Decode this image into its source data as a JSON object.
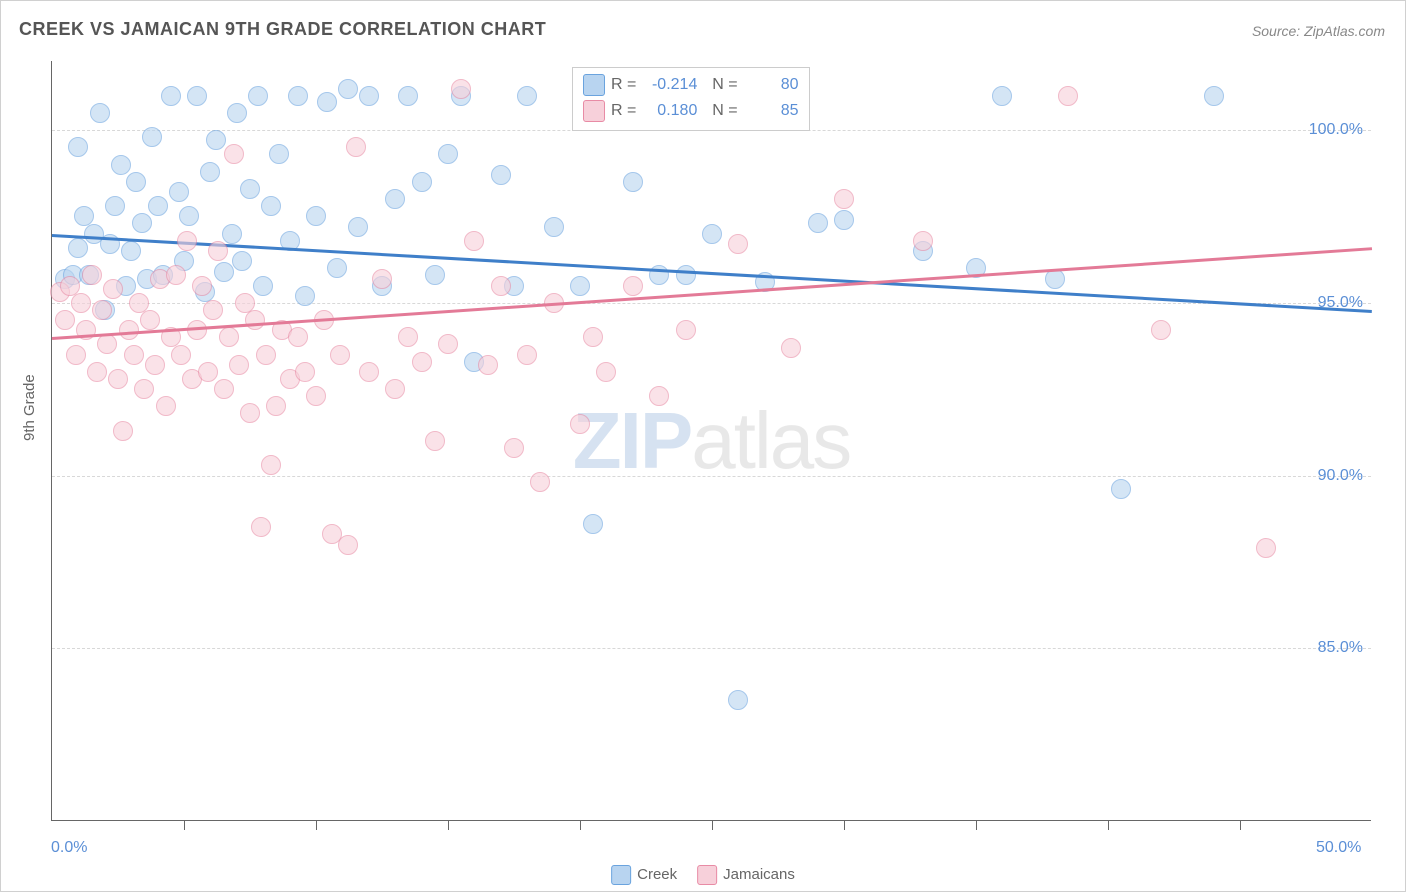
{
  "title": "CREEK VS JAMAICAN 9TH GRADE CORRELATION CHART",
  "source": "Source: ZipAtlas.com",
  "ylabel": "9th Grade",
  "watermark": {
    "zip": "ZIP",
    "atlas": "atlas"
  },
  "xlim": [
    0,
    50
  ],
  "ylim": [
    80,
    102
  ],
  "yticks": [
    {
      "v": 85.0,
      "label": "85.0%"
    },
    {
      "v": 90.0,
      "label": "90.0%"
    },
    {
      "v": 95.0,
      "label": "95.0%"
    },
    {
      "v": 100.0,
      "label": "100.0%"
    }
  ],
  "xticks_minor": [
    5,
    10,
    15,
    20,
    25,
    30,
    35,
    40,
    45
  ],
  "xtick_labels": [
    {
      "v": 0,
      "label": "0.0%"
    },
    {
      "v": 50,
      "label": "50.0%"
    }
  ],
  "colors": {
    "blue_fill": "#b8d4f0",
    "blue_stroke": "#6aa3de",
    "blue_line": "#3f7fc9",
    "pink_fill": "#f7d0da",
    "pink_stroke": "#e88ba5",
    "pink_line": "#e37a97",
    "axis_text": "#5b8fd6",
    "grid": "#d8d8d8",
    "border": "#666666",
    "title_color": "#555555",
    "source_color": "#888888"
  },
  "series": [
    {
      "name": "Creek",
      "color": "blue",
      "R": "-0.214",
      "N": "80",
      "regression": {
        "x1": 0,
        "y1": 97.0,
        "x2": 50,
        "y2": 94.8
      },
      "points": [
        [
          0.5,
          95.7
        ],
        [
          0.8,
          95.8
        ],
        [
          1.0,
          96.6
        ],
        [
          1.0,
          99.5
        ],
        [
          1.2,
          97.5
        ],
        [
          1.4,
          95.8
        ],
        [
          1.6,
          97.0
        ],
        [
          1.8,
          100.5
        ],
        [
          2.0,
          94.8
        ],
        [
          2.2,
          96.7
        ],
        [
          2.4,
          97.8
        ],
        [
          2.6,
          99.0
        ],
        [
          2.8,
          95.5
        ],
        [
          3.0,
          96.5
        ],
        [
          3.2,
          98.5
        ],
        [
          3.4,
          97.3
        ],
        [
          3.6,
          95.7
        ],
        [
          3.8,
          99.8
        ],
        [
          4.0,
          97.8
        ],
        [
          4.2,
          95.8
        ],
        [
          4.5,
          101.0
        ],
        [
          4.8,
          98.2
        ],
        [
          5.0,
          96.2
        ],
        [
          5.2,
          97.5
        ],
        [
          5.5,
          101.0
        ],
        [
          5.8,
          95.3
        ],
        [
          6.0,
          98.8
        ],
        [
          6.2,
          99.7
        ],
        [
          6.5,
          95.9
        ],
        [
          6.8,
          97.0
        ],
        [
          7.0,
          100.5
        ],
        [
          7.2,
          96.2
        ],
        [
          7.5,
          98.3
        ],
        [
          7.8,
          101.0
        ],
        [
          8.0,
          95.5
        ],
        [
          8.3,
          97.8
        ],
        [
          8.6,
          99.3
        ],
        [
          9.0,
          96.8
        ],
        [
          9.3,
          101.0
        ],
        [
          9.6,
          95.2
        ],
        [
          10.0,
          97.5
        ],
        [
          10.4,
          100.8
        ],
        [
          10.8,
          96.0
        ],
        [
          11.2,
          101.2
        ],
        [
          11.6,
          97.2
        ],
        [
          12.0,
          101.0
        ],
        [
          12.5,
          95.5
        ],
        [
          13.0,
          98.0
        ],
        [
          13.5,
          101.0
        ],
        [
          14.0,
          98.5
        ],
        [
          14.5,
          95.8
        ],
        [
          15.0,
          99.3
        ],
        [
          15.5,
          101.0
        ],
        [
          16.0,
          93.3
        ],
        [
          17.0,
          98.7
        ],
        [
          17.5,
          95.5
        ],
        [
          18.0,
          101.0
        ],
        [
          19.0,
          97.2
        ],
        [
          20.0,
          95.5
        ],
        [
          20.5,
          88.6
        ],
        [
          21.0,
          101.0
        ],
        [
          22.0,
          98.5
        ],
        [
          23.0,
          95.8
        ],
        [
          24.0,
          95.8
        ],
        [
          25.0,
          97.0
        ],
        [
          26.0,
          83.5
        ],
        [
          27.0,
          95.6
        ],
        [
          28.0,
          101.0
        ],
        [
          29.0,
          97.3
        ],
        [
          30.0,
          97.4
        ],
        [
          33.0,
          96.5
        ],
        [
          35.0,
          96.0
        ],
        [
          36.0,
          101.0
        ],
        [
          38.0,
          95.7
        ],
        [
          40.5,
          89.6
        ],
        [
          44.0,
          101.0
        ]
      ]
    },
    {
      "name": "Jamaicans",
      "color": "pink",
      "R": "0.180",
      "N": "85",
      "regression": {
        "x1": 0,
        "y1": 94.0,
        "x2": 50,
        "y2": 96.6
      },
      "points": [
        [
          0.3,
          95.3
        ],
        [
          0.5,
          94.5
        ],
        [
          0.7,
          95.5
        ],
        [
          0.9,
          93.5
        ],
        [
          1.1,
          95.0
        ],
        [
          1.3,
          94.2
        ],
        [
          1.5,
          95.8
        ],
        [
          1.7,
          93.0
        ],
        [
          1.9,
          94.8
        ],
        [
          2.1,
          93.8
        ],
        [
          2.3,
          95.4
        ],
        [
          2.5,
          92.8
        ],
        [
          2.7,
          91.3
        ],
        [
          2.9,
          94.2
        ],
        [
          3.1,
          93.5
        ],
        [
          3.3,
          95.0
        ],
        [
          3.5,
          92.5
        ],
        [
          3.7,
          94.5
        ],
        [
          3.9,
          93.2
        ],
        [
          4.1,
          95.7
        ],
        [
          4.3,
          92.0
        ],
        [
          4.5,
          94.0
        ],
        [
          4.7,
          95.8
        ],
        [
          4.9,
          93.5
        ],
        [
          5.1,
          96.8
        ],
        [
          5.3,
          92.8
        ],
        [
          5.5,
          94.2
        ],
        [
          5.7,
          95.5
        ],
        [
          5.9,
          93.0
        ],
        [
          6.1,
          94.8
        ],
        [
          6.3,
          96.5
        ],
        [
          6.5,
          92.5
        ],
        [
          6.7,
          94.0
        ],
        [
          6.9,
          99.3
        ],
        [
          7.1,
          93.2
        ],
        [
          7.3,
          95.0
        ],
        [
          7.5,
          91.8
        ],
        [
          7.7,
          94.5
        ],
        [
          7.9,
          88.5
        ],
        [
          8.1,
          93.5
        ],
        [
          8.3,
          90.3
        ],
        [
          8.5,
          92.0
        ],
        [
          8.7,
          94.2
        ],
        [
          9.0,
          92.8
        ],
        [
          9.3,
          94.0
        ],
        [
          9.6,
          93.0
        ],
        [
          10.0,
          92.3
        ],
        [
          10.3,
          94.5
        ],
        [
          10.6,
          88.3
        ],
        [
          10.9,
          93.5
        ],
        [
          11.2,
          88.0
        ],
        [
          11.5,
          99.5
        ],
        [
          12.0,
          93.0
        ],
        [
          12.5,
          95.7
        ],
        [
          13.0,
          92.5
        ],
        [
          13.5,
          94.0
        ],
        [
          14.0,
          93.3
        ],
        [
          14.5,
          91.0
        ],
        [
          15.0,
          93.8
        ],
        [
          15.5,
          101.2
        ],
        [
          16.0,
          96.8
        ],
        [
          16.5,
          93.2
        ],
        [
          17.0,
          95.5
        ],
        [
          17.5,
          90.8
        ],
        [
          18.0,
          93.5
        ],
        [
          18.5,
          89.8
        ],
        [
          19.0,
          95.0
        ],
        [
          20.0,
          91.5
        ],
        [
          20.5,
          94.0
        ],
        [
          21.0,
          93.0
        ],
        [
          22.0,
          95.5
        ],
        [
          23.0,
          92.3
        ],
        [
          24.0,
          94.2
        ],
        [
          26.0,
          96.7
        ],
        [
          28.0,
          93.7
        ],
        [
          30.0,
          98.0
        ],
        [
          33.0,
          96.8
        ],
        [
          38.5,
          101.0
        ],
        [
          42.0,
          94.2
        ],
        [
          46.0,
          87.9
        ]
      ]
    }
  ],
  "legend_bottom": [
    {
      "color": "blue",
      "label": "Creek"
    },
    {
      "color": "pink",
      "label": "Jamaicans"
    }
  ]
}
